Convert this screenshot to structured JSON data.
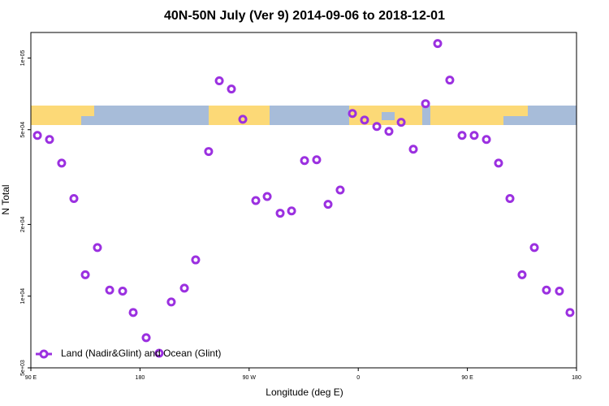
{
  "chart_data": {
    "type": "scatter",
    "title": "40N-50N July (Ver 9)   2014-09-06 to 2018-12-01",
    "x_label": "Longitude (deg E)",
    "y_label": "N Total",
    "log_y": true,
    "legend": "bottom-left",
    "xlim": [
      90,
      540
    ],
    "xticks": [
      {
        "value": 90,
        "label": "90 E"
      },
      180,
      {
        "value": 270,
        "label": "90 W"
      },
      {
        "value": 360,
        "label": "0"
      },
      {
        "value": 450,
        "label": "90 E"
      },
      {
        "value": 540,
        "label": "180"
      }
    ],
    "ylim": [
      5000,
      128000
    ],
    "yticks": [
      {
        "value": 5000,
        "label": "5e+03"
      },
      {
        "value": 10000,
        "label": "1e+04"
      },
      {
        "value": 20000,
        "label": "2e+04"
      },
      {
        "value": 50000,
        "label": "5e+04"
      },
      {
        "value": 100000,
        "label": "1e+05"
      }
    ],
    "series": [
      {
        "name": "Land (Nadir&Glint) and Ocean (Glint)",
        "color": "#9b30e0",
        "x": [
          95.4,
          105.4,
          115.4,
          125.5,
          134.9,
          144.9,
          155,
          165.7,
          174.4,
          185.1,
          195.8,
          205.8,
          216.6,
          225.9,
          236.6,
          245.4,
          255.4,
          264.8,
          275.5,
          284.9,
          295.6,
          305,
          315.7,
          325.7,
          335.1,
          345.1,
          355.2,
          365.2,
          375.3,
          385.3,
          395.4,
          405.4,
          415.5,
          425.5,
          435.5,
          445.6,
          455.6,
          465.7,
          475.7,
          485.1,
          495.1,
          505.2,
          515.2,
          525.9,
          534.6
        ],
        "values": [
          47300,
          45500,
          36200,
          25700,
          12300,
          16000,
          10600,
          10500,
          8540,
          6690,
          5760,
          9450,
          10800,
          14200,
          40500,
          80200,
          74100,
          55300,
          25200,
          26200,
          22300,
          22800,
          37100,
          37400,
          24300,
          27900,
          58500,
          54900,
          51600,
          49200,
          53700,
          41400,
          64300,
          115000,
          80800,
          47300,
          47300,
          45500,
          36200,
          25700,
          12300,
          16000,
          10600,
          10500,
          8540
        ]
      }
    ]
  }
}
